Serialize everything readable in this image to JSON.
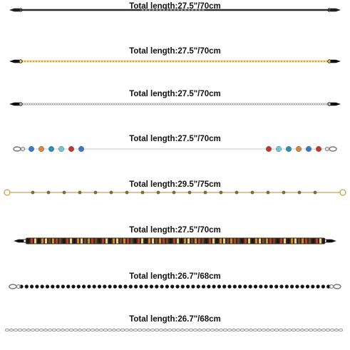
{
  "chains": [
    {
      "label": "Total length:27.5\"/70cm",
      "style": "black-snake",
      "color": "#2b2b2b",
      "highlight": "#8a8a8a"
    },
    {
      "label": "Total length:27.5\"/70cm",
      "style": "gold-box",
      "color": "#c9a63a",
      "highlight": "#f3dc8a"
    },
    {
      "label": "Total length:27.5\"/70cm",
      "style": "silver-rope",
      "color": "#a9a9a9",
      "highlight": "#e4e4e4"
    },
    {
      "label": "Total length:27.5\"/70cm",
      "style": "crystal-beads",
      "color": "#c9c9c9",
      "bead_colors": [
        "#3a78c8",
        "#d08a3a",
        "#2a8fb5",
        "#6fc6d6",
        "#c0392b"
      ]
    },
    {
      "label": "Total length:29.5\"/75cm",
      "style": "gold-beaded",
      "color": "#caa157",
      "bead_color": "#7a6a3a"
    },
    {
      "label": "Total length:27.5\"/70cm",
      "style": "leopard-strap",
      "color": "#3a2a1a",
      "pattern_colors": [
        "#1a1a1a",
        "#d08a2a",
        "#c0392b",
        "#e8d28a",
        "#6b4a2a"
      ]
    },
    {
      "label": "Total length:26.7\"/68cm",
      "style": "black-beads",
      "color": "#141414"
    },
    {
      "label": "Total length:26.7\"/68cm",
      "style": "silver-link",
      "color": "#9a9a9a"
    }
  ]
}
